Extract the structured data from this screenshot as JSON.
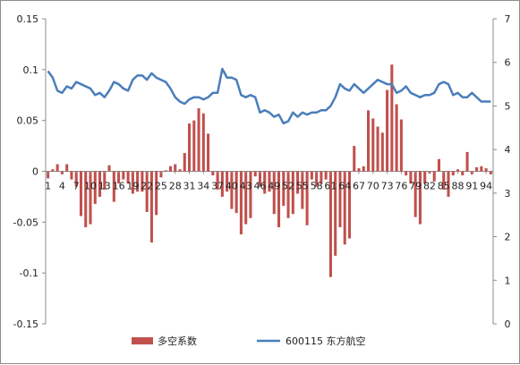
{
  "chart_data": {
    "type": "bar",
    "title": "",
    "xlabel": "",
    "ylabel_left": "",
    "ylabel_right": "",
    "grid": false,
    "legend_position": "bottom",
    "colors": {
      "bars": "#c0504d",
      "line": "#4a7ebb"
    },
    "left_axis": {
      "min": -0.15,
      "max": 0.15,
      "ticks": [
        -0.15,
        -0.1,
        -0.05,
        0,
        0.05,
        0.1,
        0.15
      ],
      "tick_labels": [
        "-0.15",
        "-0.1",
        "-0.05",
        "0",
        "0.05",
        "0.1",
        "0.15"
      ]
    },
    "right_axis": {
      "min": 0,
      "max": 7,
      "ticks": [
        0,
        1,
        2,
        3,
        4,
        5,
        6,
        7
      ],
      "tick_labels": [
        "0",
        "1",
        "2",
        "3",
        "4",
        "5",
        "6",
        "7"
      ]
    },
    "x_tick_labels": [
      "1",
      "4",
      "7",
      "10",
      "13",
      "16",
      "19",
      "22",
      "25",
      "28",
      "31",
      "34",
      "37",
      "40",
      "43",
      "46",
      "49",
      "52",
      "55",
      "58",
      "61",
      "64",
      "67",
      "70",
      "73",
      "76",
      "79",
      "82",
      "85",
      "88",
      "91",
      "94"
    ],
    "x": [
      1,
      2,
      3,
      4,
      5,
      6,
      7,
      8,
      9,
      10,
      11,
      12,
      13,
      14,
      15,
      16,
      17,
      18,
      19,
      20,
      21,
      22,
      23,
      24,
      25,
      26,
      27,
      28,
      29,
      30,
      31,
      32,
      33,
      34,
      35,
      36,
      37,
      38,
      39,
      40,
      41,
      42,
      43,
      44,
      45,
      46,
      47,
      48,
      49,
      50,
      51,
      52,
      53,
      54,
      55,
      56,
      57,
      58,
      59,
      60,
      61,
      62,
      63,
      64,
      65,
      66,
      67,
      68,
      69,
      70,
      71,
      72,
      73,
      74,
      75,
      76,
      77,
      78,
      79,
      80,
      81,
      82,
      83,
      84,
      85,
      86,
      87,
      88,
      89,
      90,
      91,
      92,
      93,
      94,
      95
    ],
    "series": [
      {
        "name": "多空系数",
        "kind": "bar",
        "axis": "left",
        "values": [
          -0.007,
          0.002,
          0.007,
          -0.003,
          0.007,
          -0.008,
          -0.015,
          -0.044,
          -0.055,
          -0.052,
          -0.032,
          -0.025,
          -0.018,
          0.006,
          -0.03,
          -0.012,
          -0.008,
          -0.012,
          -0.022,
          -0.02,
          -0.02,
          -0.04,
          -0.07,
          -0.043,
          -0.006,
          0.001,
          0.005,
          0.007,
          0.002,
          0.018,
          0.047,
          0.05,
          0.062,
          0.057,
          0.037,
          -0.004,
          -0.018,
          -0.025,
          -0.02,
          -0.037,
          -0.041,
          -0.062,
          -0.052,
          -0.046,
          -0.005,
          -0.015,
          -0.022,
          -0.02,
          -0.042,
          -0.055,
          -0.034,
          -0.046,
          -0.042,
          -0.022,
          -0.037,
          -0.053,
          -0.008,
          -0.015,
          -0.012,
          -0.008,
          -0.104,
          -0.083,
          -0.055,
          -0.072,
          -0.066,
          0.025,
          0.003,
          0.005,
          0.06,
          0.052,
          0.044,
          0.038,
          0.08,
          0.105,
          0.066,
          0.051,
          -0.004,
          -0.012,
          -0.045,
          -0.052,
          -0.012,
          -0.002,
          -0.01,
          0.012,
          -0.018,
          -0.025,
          -0.004,
          0.002,
          -0.004,
          0.019,
          -0.003,
          0.004,
          0.005,
          0.003,
          -0.003
        ]
      },
      {
        "name": "600115 东方航空",
        "kind": "line",
        "axis": "right",
        "values": [
          5.8,
          5.65,
          5.35,
          5.3,
          5.45,
          5.4,
          5.55,
          5.5,
          5.45,
          5.4,
          5.25,
          5.3,
          5.2,
          5.35,
          5.55,
          5.5,
          5.4,
          5.35,
          5.6,
          5.7,
          5.7,
          5.6,
          5.75,
          5.65,
          5.6,
          5.55,
          5.4,
          5.2,
          5.1,
          5.05,
          5.15,
          5.2,
          5.2,
          5.15,
          5.2,
          5.3,
          5.3,
          5.85,
          5.65,
          5.65,
          5.6,
          5.25,
          5.2,
          5.25,
          5.2,
          4.85,
          4.9,
          4.85,
          4.75,
          4.8,
          4.6,
          4.65,
          4.85,
          4.75,
          4.85,
          4.8,
          4.85,
          4.85,
          4.9,
          4.9,
          5.0,
          5.2,
          5.5,
          5.4,
          5.35,
          5.5,
          5.4,
          5.3,
          5.4,
          5.5,
          5.6,
          5.55,
          5.5,
          5.5,
          5.3,
          5.35,
          5.45,
          5.3,
          5.25,
          5.2,
          5.25,
          5.25,
          5.3,
          5.5,
          5.55,
          5.5,
          5.25,
          5.3,
          5.2,
          5.2,
          5.3,
          5.2,
          5.1,
          5.1,
          5.1
        ]
      }
    ]
  },
  "legend": {
    "items": [
      {
        "label": "多空系数"
      },
      {
        "label": "600115 东方航空"
      }
    ]
  }
}
